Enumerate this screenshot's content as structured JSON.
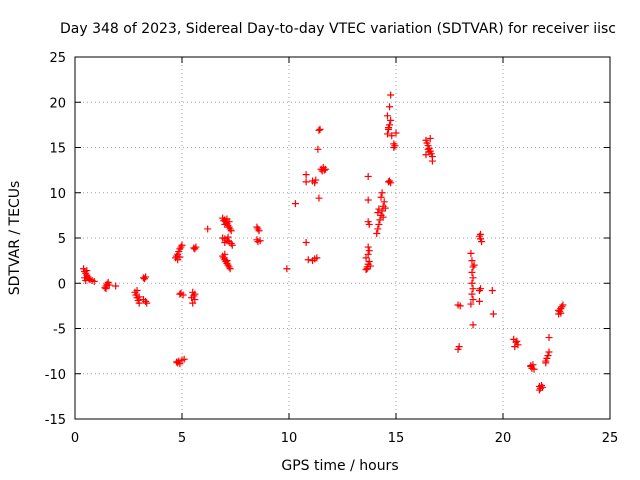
{
  "chart_data": {
    "type": "scatter",
    "title": "Day 348 of 2023, Sidereal Day-to-day VTEC variation (SDTVAR) for receiver iisc",
    "xlabel": "GPS time / hours",
    "ylabel": "SDTVAR / TECUs",
    "xlim": [
      0,
      25
    ],
    "ylim": [
      -15,
      25
    ],
    "xticks": [
      "0",
      "5",
      "10",
      "15",
      "20",
      "25"
    ],
    "yticks": [
      "-15",
      "-10",
      "-5",
      "0",
      "5",
      "10",
      "15",
      "20",
      "25"
    ],
    "grid": true,
    "marker": "+",
    "series": [
      {
        "name": "SDTVAR",
        "color": "#ff0000",
        "points": [
          [
            0.4,
            1.6
          ],
          [
            0.45,
            1.3
          ],
          [
            0.5,
            1.1
          ],
          [
            0.55,
            0.9
          ],
          [
            0.6,
            0.7
          ],
          [
            0.65,
            0.5
          ],
          [
            0.5,
            0.3
          ],
          [
            0.7,
            0.4
          ],
          [
            0.8,
            0.3
          ],
          [
            0.9,
            0.2
          ],
          [
            0.45,
            0.6
          ],
          [
            0.55,
            1.4
          ],
          [
            1.4,
            -0.5
          ],
          [
            1.45,
            -0.3
          ],
          [
            1.5,
            -0.1
          ],
          [
            1.55,
            0.1
          ],
          [
            1.45,
            -0.6
          ],
          [
            1.6,
            -0.2
          ],
          [
            1.9,
            -0.3
          ],
          [
            2.8,
            -1.0
          ],
          [
            2.85,
            -1.3
          ],
          [
            2.9,
            -1.6
          ],
          [
            2.95,
            -1.9
          ],
          [
            3.0,
            -2.2
          ],
          [
            2.9,
            -0.8
          ],
          [
            3.0,
            -1.5
          ],
          [
            3.2,
            0.6
          ],
          [
            3.3,
            0.7
          ],
          [
            3.25,
            0.5
          ],
          [
            3.2,
            -1.8
          ],
          [
            3.3,
            -2.0
          ],
          [
            3.35,
            -2.2
          ],
          [
            4.7,
            2.8
          ],
          [
            4.75,
            3.0
          ],
          [
            4.8,
            3.2
          ],
          [
            4.85,
            3.5
          ],
          [
            4.9,
            3.8
          ],
          [
            4.95,
            4.0
          ],
          [
            5.0,
            4.2
          ],
          [
            4.8,
            2.6
          ],
          [
            4.9,
            2.9
          ],
          [
            4.9,
            -1.2
          ],
          [
            4.95,
            -1.1
          ],
          [
            5.05,
            -1.3
          ],
          [
            4.8,
            -8.8
          ],
          [
            4.85,
            -8.6
          ],
          [
            4.9,
            -8.9
          ],
          [
            5.0,
            -8.5
          ],
          [
            5.1,
            -8.4
          ],
          [
            4.75,
            -8.7
          ],
          [
            5.5,
            -1.0
          ],
          [
            5.55,
            -1.4
          ],
          [
            5.6,
            -1.8
          ],
          [
            5.5,
            -2.2
          ],
          [
            5.45,
            -1.6
          ],
          [
            5.6,
            -1.2
          ],
          [
            5.6,
            3.8
          ],
          [
            5.65,
            4.0
          ],
          [
            5.55,
            3.9
          ],
          [
            6.2,
            6.0
          ],
          [
            6.9,
            7.2
          ],
          [
            7.0,
            7.0
          ],
          [
            7.05,
            6.8
          ],
          [
            7.1,
            6.6
          ],
          [
            7.15,
            6.4
          ],
          [
            7.2,
            6.2
          ],
          [
            7.25,
            6.0
          ],
          [
            7.3,
            5.8
          ],
          [
            6.95,
            6.9
          ],
          [
            7.0,
            6.5
          ],
          [
            7.1,
            7.1
          ],
          [
            7.2,
            6.8
          ],
          [
            6.9,
            5.0
          ],
          [
            7.0,
            4.9
          ],
          [
            7.1,
            4.7
          ],
          [
            7.2,
            4.6
          ],
          [
            7.3,
            4.4
          ],
          [
            7.35,
            4.2
          ],
          [
            7.0,
            4.5
          ],
          [
            7.15,
            5.1
          ],
          [
            6.9,
            3.0
          ],
          [
            6.95,
            2.8
          ],
          [
            7.0,
            2.6
          ],
          [
            7.05,
            2.4
          ],
          [
            7.1,
            2.2
          ],
          [
            7.15,
            2.0
          ],
          [
            7.2,
            1.8
          ],
          [
            7.25,
            1.6
          ],
          [
            7.0,
            3.2
          ],
          [
            7.1,
            2.5
          ],
          [
            8.5,
            6.2
          ],
          [
            8.55,
            6.0
          ],
          [
            8.6,
            5.8
          ],
          [
            8.5,
            4.8
          ],
          [
            8.55,
            4.6
          ],
          [
            8.65,
            4.7
          ],
          [
            9.9,
            1.6
          ],
          [
            10.3,
            8.8
          ],
          [
            10.8,
            12.0
          ],
          [
            10.8,
            11.2
          ],
          [
            10.8,
            4.5
          ],
          [
            10.9,
            2.6
          ],
          [
            11.1,
            2.5
          ],
          [
            11.2,
            2.7
          ],
          [
            11.3,
            2.8
          ],
          [
            11.1,
            11.3
          ],
          [
            11.2,
            11.1
          ],
          [
            11.25,
            11.4
          ],
          [
            11.4,
            16.9
          ],
          [
            11.45,
            17.0
          ],
          [
            11.35,
            14.8
          ],
          [
            11.4,
            9.4
          ],
          [
            11.5,
            12.6
          ],
          [
            11.55,
            12.4
          ],
          [
            11.6,
            12.8
          ],
          [
            11.65,
            12.5
          ],
          [
            11.7,
            12.6
          ],
          [
            13.7,
            11.8
          ],
          [
            13.7,
            9.2
          ],
          [
            13.7,
            6.8
          ],
          [
            13.75,
            6.5
          ],
          [
            13.6,
            1.5
          ],
          [
            13.65,
            1.8
          ],
          [
            13.7,
            2.1
          ],
          [
            13.75,
            2.4
          ],
          [
            13.6,
            2.8
          ],
          [
            13.7,
            3.2
          ],
          [
            13.75,
            3.6
          ],
          [
            13.7,
            4.0
          ],
          [
            13.65,
            1.6
          ],
          [
            13.8,
            1.9
          ],
          [
            14.1,
            5.5
          ],
          [
            14.15,
            6.0
          ],
          [
            14.2,
            6.5
          ],
          [
            14.25,
            7.0
          ],
          [
            14.3,
            7.5
          ],
          [
            14.35,
            8.0
          ],
          [
            14.4,
            8.5
          ],
          [
            14.45,
            9.0
          ],
          [
            14.3,
            9.5
          ],
          [
            14.35,
            10.0
          ],
          [
            14.4,
            7.3
          ],
          [
            14.2,
            8.2
          ],
          [
            14.15,
            7.8
          ],
          [
            14.5,
            8.3
          ],
          [
            14.7,
            11.3
          ],
          [
            14.75,
            11.1
          ],
          [
            14.65,
            11.2
          ],
          [
            14.6,
            16.5
          ],
          [
            14.65,
            17.0
          ],
          [
            14.7,
            17.5
          ],
          [
            14.75,
            18.0
          ],
          [
            14.6,
            18.5
          ],
          [
            14.7,
            19.5
          ],
          [
            14.75,
            20.8
          ],
          [
            14.8,
            16.3
          ],
          [
            14.65,
            17.2
          ],
          [
            14.9,
            15.0
          ],
          [
            14.95,
            15.2
          ],
          [
            15.0,
            16.6
          ],
          [
            14.9,
            15.4
          ],
          [
            16.4,
            15.8
          ],
          [
            16.45,
            15.5
          ],
          [
            16.5,
            15.2
          ],
          [
            16.55,
            14.9
          ],
          [
            16.6,
            14.6
          ],
          [
            16.65,
            14.3
          ],
          [
            16.7,
            14.0
          ],
          [
            16.4,
            14.2
          ],
          [
            16.5,
            14.8
          ],
          [
            16.6,
            16.0
          ],
          [
            16.7,
            13.5
          ],
          [
            16.55,
            14.5
          ],
          [
            17.9,
            -2.4
          ],
          [
            18.0,
            -2.5
          ],
          [
            17.95,
            -7.0
          ],
          [
            17.9,
            -7.3
          ],
          [
            18.5,
            3.3
          ],
          [
            18.55,
            2.5
          ],
          [
            18.6,
            1.8
          ],
          [
            18.55,
            1.2
          ],
          [
            18.6,
            0.6
          ],
          [
            18.55,
            0.0
          ],
          [
            18.6,
            -0.6
          ],
          [
            18.55,
            -1.2
          ],
          [
            18.6,
            -1.8
          ],
          [
            18.5,
            -2.3
          ],
          [
            18.6,
            -4.6
          ],
          [
            18.65,
            2.0
          ],
          [
            18.9,
            5.2
          ],
          [
            18.95,
            4.9
          ],
          [
            19.0,
            4.6
          ],
          [
            18.95,
            5.4
          ],
          [
            18.9,
            -0.8
          ],
          [
            18.95,
            -0.6
          ],
          [
            18.9,
            -2.0
          ],
          [
            19.5,
            -0.8
          ],
          [
            19.55,
            -3.4
          ],
          [
            20.5,
            -6.2
          ],
          [
            20.6,
            -6.5
          ],
          [
            20.7,
            -6.8
          ],
          [
            20.65,
            -6.4
          ],
          [
            20.55,
            -7.0
          ],
          [
            21.3,
            -9.2
          ],
          [
            21.35,
            -9.4
          ],
          [
            21.4,
            -9.0
          ],
          [
            21.45,
            -9.5
          ],
          [
            21.3,
            -9.1
          ],
          [
            21.7,
            -11.4
          ],
          [
            21.75,
            -11.6
          ],
          [
            21.8,
            -11.3
          ],
          [
            21.85,
            -11.5
          ],
          [
            21.7,
            -11.8
          ],
          [
            22.0,
            -8.6
          ],
          [
            22.05,
            -8.3
          ],
          [
            22.1,
            -8.0
          ],
          [
            22.15,
            -7.6
          ],
          [
            22.0,
            -8.8
          ],
          [
            22.15,
            -6.0
          ],
          [
            22.6,
            -3.4
          ],
          [
            22.65,
            -3.1
          ],
          [
            22.7,
            -2.8
          ],
          [
            22.75,
            -2.6
          ],
          [
            22.8,
            -2.4
          ],
          [
            22.6,
            -3.0
          ],
          [
            22.7,
            -3.3
          ]
        ]
      }
    ]
  }
}
